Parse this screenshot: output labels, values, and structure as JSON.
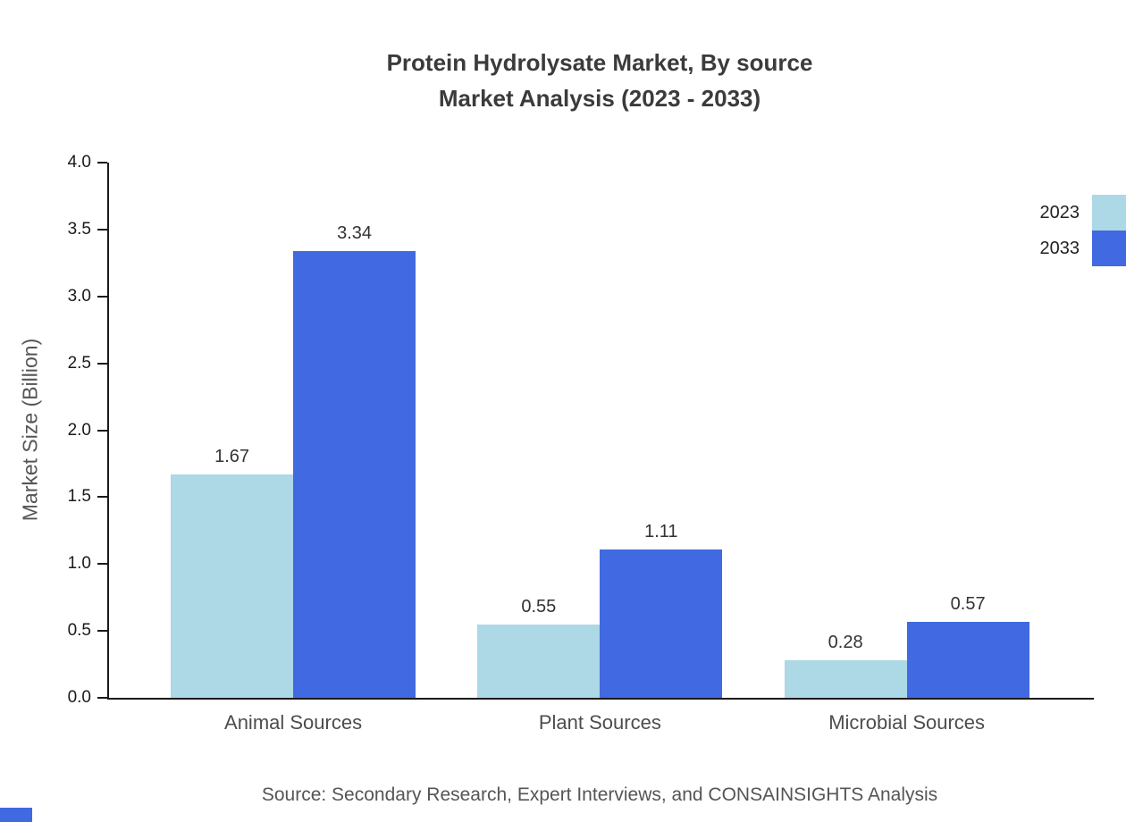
{
  "title": {
    "line1": "Protein Hydrolysate Market, By source",
    "line2": "Market Analysis (2023 - 2033)"
  },
  "footer": {
    "source": "Source: Secondary Research, Expert Interviews, and CONSAINSIGHTS Analysis"
  },
  "colors": {
    "accent": "#4169E1",
    "series_2023": "#ADD8E6",
    "series_2033": "#4169E1",
    "axis": "#1a1a1a"
  },
  "chart_data": {
    "type": "bar",
    "title": "Protein Hydrolysate Market, By source — Market Analysis (2023 - 2033)",
    "categories": [
      "Animal Sources",
      "Plant Sources",
      "Microbial Sources"
    ],
    "series": [
      {
        "name": "2023",
        "color": "#ADD8E6",
        "values": [
          1.67,
          0.55,
          0.28
        ]
      },
      {
        "name": "2033",
        "color": "#4169E1",
        "values": [
          3.34,
          1.11,
          0.57
        ]
      }
    ],
    "xlabel": "",
    "ylabel": "Market Size (Billion)",
    "ylim": [
      0,
      4.0
    ],
    "ytick_step": 0.5,
    "grid": false,
    "legend_position": "top-right",
    "value_labels_decimals": 2
  }
}
